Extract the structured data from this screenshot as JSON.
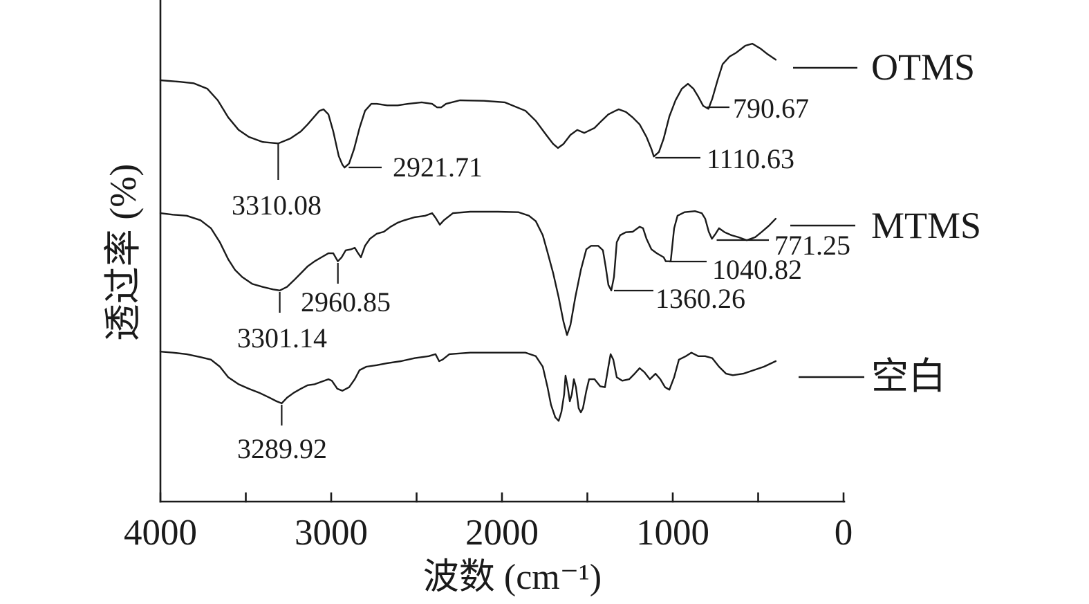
{
  "chart_data": {
    "type": "line",
    "xlabel": "波数 (cm⁻¹)",
    "ylabel": "透过率 (%)",
    "xlim": [
      4000,
      0
    ],
    "ylim": [
      0,
      100
    ],
    "xticks": [
      4000,
      3000,
      2000,
      1000,
      0
    ],
    "xtick_labels": [
      "4000",
      "3000",
      "2000",
      "1000",
      "0"
    ],
    "xticks_minor": [
      3500,
      2500,
      1500,
      500
    ],
    "grid": false,
    "legend": "right",
    "line_color": "#1a1a1a",
    "series": [
      {
        "name": "OTMS",
        "points": [
          [
            4000,
            84.0
          ],
          [
            3887,
            83.7
          ],
          [
            3806,
            83.4
          ],
          [
            3725,
            82.3
          ],
          [
            3664,
            80.0
          ],
          [
            3603,
            76.6
          ],
          [
            3542,
            74.1
          ],
          [
            3482,
            72.7
          ],
          [
            3401,
            71.7
          ],
          [
            3310,
            71.4
          ],
          [
            3239,
            72.4
          ],
          [
            3178,
            73.8
          ],
          [
            3138,
            75.2
          ],
          [
            3097,
            76.8
          ],
          [
            3069,
            77.9
          ],
          [
            3045,
            78.2
          ],
          [
            3016,
            77.2
          ],
          [
            2988,
            73.8
          ],
          [
            2956,
            68.9
          ],
          [
            2935,
            67.2
          ],
          [
            2922,
            66.6
          ],
          [
            2895,
            67.4
          ],
          [
            2866,
            70.3
          ],
          [
            2834,
            74.5
          ],
          [
            2802,
            77.9
          ],
          [
            2765,
            79.3
          ],
          [
            2733,
            79.3
          ],
          [
            2672,
            79.0
          ],
          [
            2611,
            79.0
          ],
          [
            2550,
            79.3
          ],
          [
            2470,
            79.6
          ],
          [
            2409,
            79.3
          ],
          [
            2380,
            78.6
          ],
          [
            2356,
            78.6
          ],
          [
            2328,
            79.3
          ],
          [
            2247,
            80.0
          ],
          [
            2105,
            79.9
          ],
          [
            1984,
            79.6
          ],
          [
            1862,
            77.9
          ],
          [
            1802,
            75.9
          ],
          [
            1741,
            73.1
          ],
          [
            1700,
            71.3
          ],
          [
            1672,
            70.5
          ],
          [
            1640,
            71.3
          ],
          [
            1599,
            73.1
          ],
          [
            1559,
            74.1
          ],
          [
            1518,
            73.5
          ],
          [
            1458,
            74.5
          ],
          [
            1417,
            75.9
          ],
          [
            1377,
            77.2
          ],
          [
            1336,
            77.9
          ],
          [
            1316,
            78.2
          ],
          [
            1275,
            77.7
          ],
          [
            1235,
            76.6
          ],
          [
            1194,
            75.2
          ],
          [
            1154,
            72.7
          ],
          [
            1125,
            70.3
          ],
          [
            1111,
            68.8
          ],
          [
            1081,
            69.7
          ],
          [
            1053,
            72.4
          ],
          [
            1020,
            76.8
          ],
          [
            984,
            80.0
          ],
          [
            947,
            82.3
          ],
          [
            911,
            83.3
          ],
          [
            879,
            82.3
          ],
          [
            850,
            80.7
          ],
          [
            822,
            78.9
          ],
          [
            791,
            78.3
          ],
          [
            769,
            80.3
          ],
          [
            737,
            84.1
          ],
          [
            708,
            87.2
          ],
          [
            668,
            88.7
          ],
          [
            628,
            89.5
          ],
          [
            575,
            90.9
          ],
          [
            534,
            91.3
          ],
          [
            486,
            90.3
          ],
          [
            445,
            89.2
          ],
          [
            397,
            88.1
          ]
        ]
      },
      {
        "name": "MTMS",
        "points": [
          [
            4000,
            57.5
          ],
          [
            3927,
            57.2
          ],
          [
            3846,
            57.0
          ],
          [
            3765,
            56.1
          ],
          [
            3704,
            54.5
          ],
          [
            3652,
            51.7
          ],
          [
            3603,
            48.3
          ],
          [
            3563,
            46.2
          ],
          [
            3522,
            44.8
          ],
          [
            3462,
            43.4
          ],
          [
            3401,
            42.8
          ],
          [
            3340,
            42.3
          ],
          [
            3301,
            42.1
          ],
          [
            3259,
            42.8
          ],
          [
            3219,
            44.1
          ],
          [
            3178,
            45.5
          ],
          [
            3138,
            46.9
          ],
          [
            3097,
            47.9
          ],
          [
            3057,
            48.7
          ],
          [
            3016,
            49.5
          ],
          [
            2988,
            49.5
          ],
          [
            2961,
            47.9
          ],
          [
            2939,
            48.7
          ],
          [
            2915,
            50.1
          ],
          [
            2883,
            50.3
          ],
          [
            2862,
            50.6
          ],
          [
            2842,
            49.5
          ],
          [
            2826,
            48.7
          ],
          [
            2802,
            51.0
          ],
          [
            2773,
            52.4
          ],
          [
            2733,
            53.4
          ],
          [
            2692,
            53.8
          ],
          [
            2652,
            54.8
          ],
          [
            2611,
            55.6
          ],
          [
            2571,
            56.1
          ],
          [
            2510,
            56.7
          ],
          [
            2449,
            57.0
          ],
          [
            2409,
            57.5
          ],
          [
            2389,
            56.6
          ],
          [
            2364,
            55.2
          ],
          [
            2340,
            56.1
          ],
          [
            2287,
            57.5
          ],
          [
            2186,
            57.8
          ],
          [
            2024,
            57.8
          ],
          [
            1903,
            57.7
          ],
          [
            1842,
            57.0
          ],
          [
            1802,
            55.9
          ],
          [
            1761,
            53.1
          ],
          [
            1733,
            49.7
          ],
          [
            1700,
            45.5
          ],
          [
            1668,
            40.7
          ],
          [
            1640,
            35.9
          ],
          [
            1619,
            33.2
          ],
          [
            1599,
            35.2
          ],
          [
            1571,
            40.7
          ],
          [
            1538,
            46.2
          ],
          [
            1506,
            50.3
          ],
          [
            1478,
            51.0
          ],
          [
            1437,
            51.0
          ],
          [
            1409,
            50.1
          ],
          [
            1393,
            46.9
          ],
          [
            1377,
            43.2
          ],
          [
            1360,
            42.1
          ],
          [
            1344,
            44.8
          ],
          [
            1328,
            51.7
          ],
          [
            1308,
            53.1
          ],
          [
            1275,
            53.7
          ],
          [
            1235,
            53.8
          ],
          [
            1194,
            54.8
          ],
          [
            1174,
            54.5
          ],
          [
            1154,
            52.4
          ],
          [
            1125,
            50.3
          ],
          [
            1093,
            49.5
          ],
          [
            1053,
            48.7
          ],
          [
            1041,
            47.9
          ],
          [
            1012,
            47.9
          ],
          [
            992,
            54.5
          ],
          [
            972,
            57.0
          ],
          [
            931,
            57.7
          ],
          [
            870,
            57.9
          ],
          [
            830,
            57.5
          ],
          [
            810,
            56.4
          ],
          [
            789,
            53.8
          ],
          [
            771,
            52.4
          ],
          [
            749,
            53.4
          ],
          [
            729,
            54.5
          ],
          [
            696,
            53.7
          ],
          [
            656,
            53.1
          ],
          [
            615,
            52.7
          ],
          [
            567,
            52.1
          ],
          [
            518,
            52.7
          ],
          [
            478,
            53.8
          ],
          [
            437,
            55.0
          ],
          [
            397,
            56.4
          ]
        ]
      },
      {
        "name": "空白",
        "points": [
          [
            4000,
            29.9
          ],
          [
            3927,
            29.7
          ],
          [
            3846,
            29.4
          ],
          [
            3765,
            28.8
          ],
          [
            3704,
            28.3
          ],
          [
            3652,
            26.9
          ],
          [
            3603,
            24.8
          ],
          [
            3542,
            23.4
          ],
          [
            3482,
            22.5
          ],
          [
            3421,
            21.7
          ],
          [
            3360,
            20.7
          ],
          [
            3320,
            20.0
          ],
          [
            3290,
            19.6
          ],
          [
            3259,
            20.7
          ],
          [
            3219,
            21.7
          ],
          [
            3178,
            22.5
          ],
          [
            3138,
            23.2
          ],
          [
            3097,
            23.4
          ],
          [
            3057,
            23.9
          ],
          [
            3016,
            24.4
          ],
          [
            2996,
            24.1
          ],
          [
            2964,
            22.5
          ],
          [
            2935,
            22.1
          ],
          [
            2895,
            22.8
          ],
          [
            2862,
            24.4
          ],
          [
            2834,
            26.2
          ],
          [
            2794,
            26.9
          ],
          [
            2733,
            27.2
          ],
          [
            2672,
            27.6
          ],
          [
            2591,
            28.0
          ],
          [
            2510,
            28.6
          ],
          [
            2429,
            29.0
          ],
          [
            2389,
            29.4
          ],
          [
            2368,
            28.0
          ],
          [
            2348,
            28.3
          ],
          [
            2308,
            29.4
          ],
          [
            2186,
            29.7
          ],
          [
            2024,
            29.7
          ],
          [
            1862,
            29.7
          ],
          [
            1802,
            29.0
          ],
          [
            1761,
            26.9
          ],
          [
            1733,
            22.8
          ],
          [
            1713,
            19.3
          ],
          [
            1688,
            16.8
          ],
          [
            1668,
            16.1
          ],
          [
            1652,
            17.9
          ],
          [
            1636,
            21.4
          ],
          [
            1628,
            25.1
          ],
          [
            1615,
            22.8
          ],
          [
            1603,
            20.0
          ],
          [
            1591,
            21.4
          ],
          [
            1579,
            24.4
          ],
          [
            1567,
            22.8
          ],
          [
            1551,
            18.6
          ],
          [
            1538,
            17.8
          ],
          [
            1526,
            18.6
          ],
          [
            1506,
            22.1
          ],
          [
            1490,
            24.4
          ],
          [
            1458,
            24.4
          ],
          [
            1425,
            23.0
          ],
          [
            1397,
            22.8
          ],
          [
            1377,
            26.9
          ],
          [
            1364,
            29.4
          ],
          [
            1348,
            28.3
          ],
          [
            1328,
            24.8
          ],
          [
            1296,
            24.1
          ],
          [
            1255,
            24.4
          ],
          [
            1223,
            25.5
          ],
          [
            1194,
            26.6
          ],
          [
            1166,
            25.8
          ],
          [
            1134,
            24.4
          ],
          [
            1101,
            25.5
          ],
          [
            1073,
            24.4
          ],
          [
            1045,
            22.8
          ],
          [
            1020,
            22.3
          ],
          [
            992,
            24.8
          ],
          [
            964,
            28.3
          ],
          [
            923,
            29.0
          ],
          [
            891,
            29.7
          ],
          [
            850,
            29.0
          ],
          [
            810,
            29.0
          ],
          [
            769,
            28.6
          ],
          [
            729,
            26.9
          ],
          [
            688,
            25.5
          ],
          [
            648,
            25.2
          ],
          [
            587,
            25.5
          ],
          [
            526,
            26.2
          ],
          [
            466,
            26.9
          ],
          [
            397,
            28.0
          ]
        ]
      }
    ],
    "annotations": [
      {
        "series_index": 0,
        "label": "3310.08"
      },
      {
        "series_index": 0,
        "label": "2921.71"
      },
      {
        "series_index": 0,
        "label": "1110.63"
      },
      {
        "series_index": 0,
        "label": "790.67"
      },
      {
        "series_index": 1,
        "label": "3301.14"
      },
      {
        "series_index": 1,
        "label": "2960.85"
      },
      {
        "series_index": 1,
        "label": "1360.26"
      },
      {
        "series_index": 1,
        "label": "1040.82"
      },
      {
        "series_index": 1,
        "label": "771.25"
      },
      {
        "series_index": 2,
        "label": "3289.92"
      }
    ]
  }
}
